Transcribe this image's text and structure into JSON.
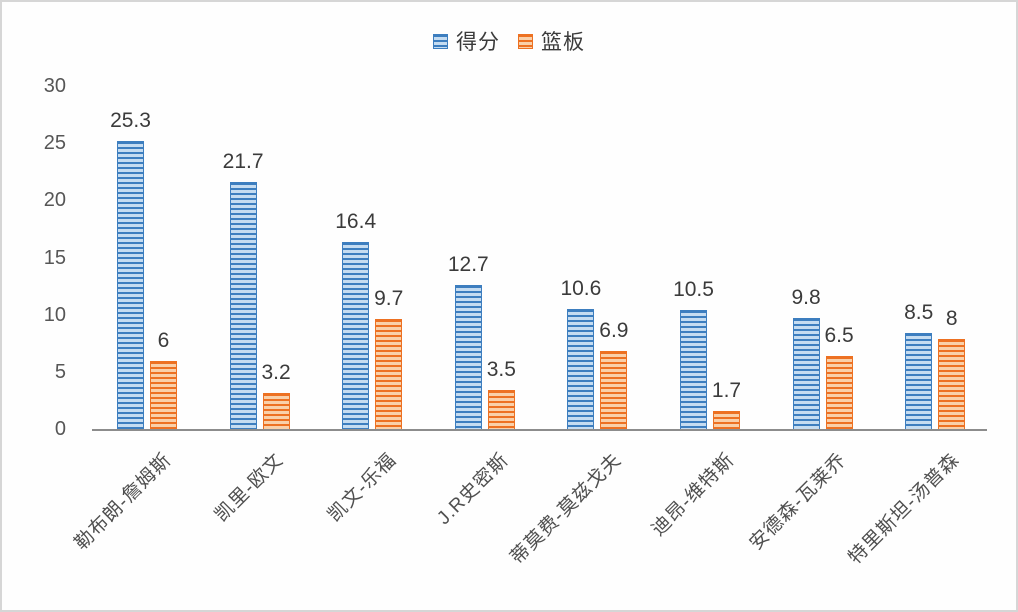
{
  "chart_data": {
    "type": "bar",
    "title": "",
    "categories": [
      "勒布朗-詹姆斯",
      "凯里-欧文",
      "凯文-乐福",
      "J.R史密斯",
      "蒂莫费-莫兹戈夫",
      "迪昂-维特斯",
      "安德森-瓦莱乔",
      "特里斯坦-汤普森"
    ],
    "series": [
      {
        "name": "得分",
        "values": [
          25.3,
          21.7,
          16.4,
          12.7,
          10.6,
          10.5,
          9.8,
          8.5
        ],
        "stripe_color": "#3d7ebf",
        "fill_color": "#c5dcf1"
      },
      {
        "name": "篮板",
        "values": [
          6,
          3.2,
          9.7,
          3.5,
          6.9,
          1.7,
          6.5,
          8
        ],
        "stripe_color": "#ed7122",
        "fill_color": "#f9d0a9"
      }
    ],
    "ylim": [
      0,
      30
    ],
    "yticks": [
      0,
      5,
      10,
      15,
      20,
      25,
      30
    ],
    "xlabel": "",
    "ylabel": "",
    "grid": false,
    "legend_position": "top-center",
    "value_labels": true,
    "value_label_color": "#3b3b3b",
    "tick_label_color": "#565656",
    "axis_line_color": "#8c8c8c"
  }
}
